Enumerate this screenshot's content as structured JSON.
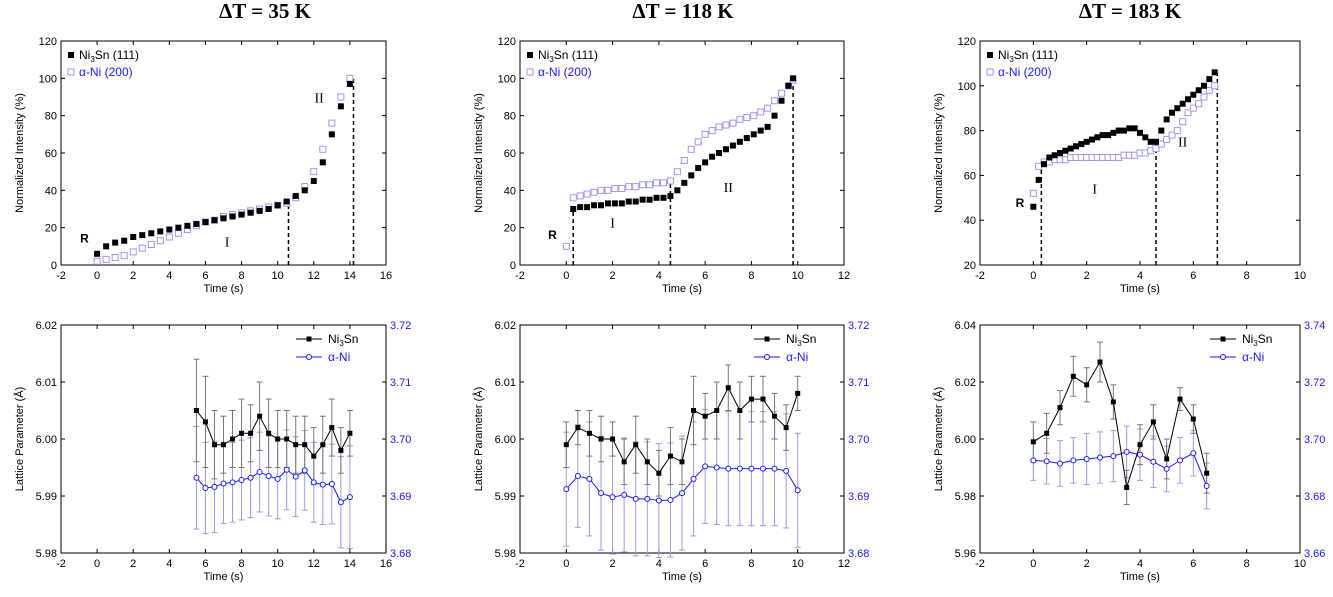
{
  "titles": [
    "ΔT = 35 K",
    "ΔT = 118 K",
    "ΔT = 183 K"
  ],
  "colors": {
    "black_series": "#000000",
    "blue_series": "#1a1aff",
    "blue_light": "#9a9af5"
  },
  "chart_data": [
    {
      "type": "scatter",
      "title": "ΔT = 35 K",
      "xlabel": "Time (s)",
      "ylabel": "Normalized Intensity (%)",
      "xlim": [
        -2,
        16
      ],
      "ylim": [
        0,
        120
      ],
      "xticks": [
        -2,
        0,
        2,
        4,
        6,
        8,
        10,
        12,
        14,
        16
      ],
      "yticks": [
        0,
        20,
        40,
        60,
        80,
        100,
        120
      ],
      "legend": [
        "Ni3Sn (111)",
        "α-Ni (200)"
      ],
      "regions": [
        "R",
        "I",
        "II"
      ],
      "region_label_pos": [
        [
          -0.7,
          12
        ],
        [
          7.2,
          10
        ],
        [
          12.3,
          87
        ]
      ],
      "dividers": [
        10.6,
        14.2
      ],
      "series": [
        {
          "name": "Ni3Sn (111)",
          "x": [
            0,
            0.5,
            1,
            1.5,
            2,
            2.5,
            3,
            3.5,
            4,
            4.5,
            5,
            5.5,
            6,
            6.5,
            7,
            7.5,
            8,
            8.5,
            9,
            9.5,
            10,
            10.5,
            11,
            11.5,
            12,
            12.5,
            13,
            13.5,
            14
          ],
          "y": [
            6,
            10,
            12,
            13,
            15,
            16,
            17,
            18,
            19,
            20,
            21,
            22,
            23,
            24,
            25,
            26,
            27,
            28,
            29,
            30,
            32,
            34,
            37,
            40,
            45,
            55,
            70,
            85,
            97
          ]
        },
        {
          "name": "α-Ni (200)",
          "x": [
            0,
            0.5,
            1,
            1.5,
            2,
            2.5,
            3,
            3.5,
            4,
            4.5,
            5,
            5.5,
            6,
            6.5,
            7,
            7.5,
            8,
            8.5,
            9,
            9.5,
            10,
            10.5,
            11,
            11.5,
            12,
            12.5,
            13,
            13.5,
            14
          ],
          "y": [
            2,
            3,
            4,
            5,
            7,
            9,
            11,
            13,
            15,
            17,
            19,
            21,
            23,
            24,
            26,
            27,
            28,
            29,
            30,
            31,
            32,
            33,
            36,
            42,
            50,
            62,
            76,
            90,
            100
          ]
        }
      ]
    },
    {
      "type": "scatter",
      "title": "ΔT = 118 K",
      "xlabel": "Time (s)",
      "ylabel": "Normalized Intensity (%)",
      "xlim": [
        -2,
        12
      ],
      "ylim": [
        0,
        120
      ],
      "xticks": [
        -2,
        0,
        2,
        4,
        6,
        8,
        10,
        12
      ],
      "yticks": [
        0,
        20,
        40,
        60,
        80,
        100,
        120
      ],
      "legend": [
        "Ni3Sn (111)",
        "α-Ni (200)"
      ],
      "regions": [
        "R",
        "I",
        "II"
      ],
      "region_label_pos": [
        [
          -0.6,
          14
        ],
        [
          2.0,
          20
        ],
        [
          7.0,
          39
        ]
      ],
      "dividers": [
        0.3,
        4.5,
        9.8
      ],
      "series": [
        {
          "name": "Ni3Sn (111)",
          "x": [
            0.3,
            0.6,
            0.9,
            1.2,
            1.5,
            1.8,
            2.1,
            2.4,
            2.7,
            3.0,
            3.3,
            3.6,
            3.9,
            4.2,
            4.5,
            4.8,
            5.1,
            5.4,
            5.7,
            6.0,
            6.3,
            6.6,
            6.9,
            7.2,
            7.5,
            7.8,
            8.1,
            8.4,
            8.7,
            9.0,
            9.3,
            9.6,
            9.8
          ],
          "y": [
            30,
            31,
            31,
            32,
            32,
            33,
            33,
            33,
            34,
            34,
            35,
            35,
            36,
            36,
            37,
            40,
            44,
            48,
            52,
            55,
            58,
            60,
            62,
            64,
            66,
            68,
            70,
            72,
            74,
            80,
            88,
            96,
            100
          ]
        },
        {
          "name": "α-Ni (200)",
          "x": [
            0.0,
            0.3,
            0.6,
            0.9,
            1.2,
            1.5,
            1.8,
            2.1,
            2.4,
            2.7,
            3.0,
            3.3,
            3.6,
            3.9,
            4.2,
            4.5,
            4.8,
            5.1,
            5.4,
            5.7,
            6.0,
            6.3,
            6.6,
            6.9,
            7.2,
            7.5,
            7.8,
            8.1,
            8.4,
            8.7,
            9.0,
            9.3,
            9.6,
            9.8
          ],
          "y": [
            10,
            36,
            37,
            38,
            39,
            40,
            40,
            41,
            41,
            42,
            42,
            43,
            43,
            44,
            44,
            45,
            50,
            56,
            62,
            66,
            70,
            72,
            74,
            75,
            76,
            78,
            79,
            80,
            82,
            84,
            88,
            92,
            96,
            99
          ]
        }
      ]
    },
    {
      "type": "scatter",
      "title": "ΔT = 183 K",
      "xlabel": "Time (s)",
      "ylabel": "Normalized Intensity (%)",
      "xlim": [
        -2,
        10
      ],
      "ylim": [
        20,
        120
      ],
      "xticks": [
        -2,
        0,
        2,
        4,
        6,
        8,
        10
      ],
      "yticks": [
        20,
        40,
        60,
        80,
        100,
        120
      ],
      "legend": [
        "Ni3Sn (111)",
        "α-Ni (200)"
      ],
      "regions": [
        "R",
        "I",
        "II"
      ],
      "region_label_pos": [
        [
          -0.5,
          46
        ],
        [
          2.3,
          52
        ],
        [
          5.6,
          73
        ]
      ],
      "dividers": [
        0.3,
        4.6,
        6.9
      ],
      "series": [
        {
          "name": "Ni3Sn (111)",
          "x": [
            0.0,
            0.2,
            0.4,
            0.6,
            0.8,
            1.0,
            1.2,
            1.4,
            1.6,
            1.8,
            2.0,
            2.2,
            2.4,
            2.6,
            2.8,
            3.0,
            3.2,
            3.4,
            3.6,
            3.8,
            4.0,
            4.2,
            4.4,
            4.6,
            4.8,
            5.0,
            5.2,
            5.4,
            5.6,
            5.8,
            6.0,
            6.2,
            6.4,
            6.6,
            6.8
          ],
          "y": [
            46,
            58,
            65,
            68,
            69,
            70,
            71,
            72,
            73,
            74,
            75,
            76,
            77,
            78,
            78,
            79,
            80,
            80,
            81,
            81,
            79,
            77,
            75,
            75,
            80,
            85,
            88,
            90,
            92,
            94,
            96,
            98,
            100,
            103,
            106
          ]
        },
        {
          "name": "α-Ni (200)",
          "x": [
            0.0,
            0.2,
            0.4,
            0.6,
            0.8,
            1.0,
            1.2,
            1.4,
            1.6,
            1.8,
            2.0,
            2.2,
            2.4,
            2.6,
            2.8,
            3.0,
            3.2,
            3.4,
            3.6,
            3.8,
            4.0,
            4.2,
            4.4,
            4.6,
            4.8,
            5.0,
            5.2,
            5.4,
            5.6,
            5.8,
            6.0,
            6.2,
            6.4,
            6.6,
            6.8
          ],
          "y": [
            52,
            64,
            66,
            66,
            67,
            67,
            67,
            68,
            68,
            68,
            68,
            68,
            68,
            68,
            68,
            68,
            68,
            69,
            69,
            69,
            70,
            70,
            71,
            72,
            74,
            76,
            78,
            80,
            84,
            88,
            90,
            92,
            95,
            98,
            100
          ]
        }
      ]
    },
    {
      "type": "line",
      "xlabel": "Time (s)",
      "ylabel": "Lattice Parameter (Å)",
      "xlim": [
        -2,
        16
      ],
      "ylim": [
        5.98,
        6.02
      ],
      "y2lim": [
        3.68,
        3.72
      ],
      "xticks": [
        -2,
        0,
        2,
        4,
        6,
        8,
        10,
        12,
        14,
        16
      ],
      "yticks": [
        "5.98",
        "5.99",
        "6.00",
        "6.01",
        "6.02"
      ],
      "y2ticks": [
        "3.68",
        "3.69",
        "3.70",
        "3.71",
        "3.72"
      ],
      "legend": [
        "Ni3Sn",
        "α-Ni"
      ],
      "series": [
        {
          "name": "Ni3Sn",
          "x": [
            5.5,
            6.0,
            6.5,
            7.0,
            7.5,
            8.0,
            8.5,
            9.0,
            9.5,
            10.0,
            10.5,
            11.0,
            11.5,
            12.0,
            12.5,
            13.0,
            13.5,
            14.0
          ],
          "y": [
            6.005,
            6.003,
            5.999,
            5.999,
            6.0,
            6.001,
            6.001,
            6.004,
            6.001,
            6.0,
            6.0,
            5.999,
            5.999,
            5.997,
            5.999,
            6.002,
            5.998,
            6.001
          ],
          "err": [
            0.009,
            0.008,
            0.006,
            0.005,
            0.005,
            0.006,
            0.005,
            0.006,
            0.006,
            0.005,
            0.005,
            0.005,
            0.005,
            0.005,
            0.005,
            0.005,
            0.004,
            0.004
          ]
        },
        {
          "name": "α-Ni",
          "x": [
            5.5,
            6.0,
            6.5,
            7.0,
            7.5,
            8.0,
            8.5,
            9.0,
            9.5,
            10.0,
            10.5,
            11.0,
            11.5,
            12.0,
            12.5,
            13.0,
            13.5,
            14.0
          ],
          "y": [
            3.6932,
            3.6914,
            3.6916,
            3.6922,
            3.6924,
            3.6928,
            3.6932,
            3.6942,
            3.6935,
            3.693,
            3.6946,
            3.6934,
            3.6945,
            3.6924,
            3.692,
            3.6921,
            3.6889,
            3.6898
          ],
          "err": [
            0.009,
            0.008,
            0.008,
            0.007,
            0.007,
            0.007,
            0.007,
            0.007,
            0.007,
            0.007,
            0.007,
            0.007,
            0.007,
            0.007,
            0.007,
            0.007,
            0.008,
            0.009
          ]
        }
      ]
    },
    {
      "type": "line",
      "xlabel": "Time (s)",
      "ylabel": "Lattice Parameter (Å)",
      "xlim": [
        -2,
        12
      ],
      "ylim": [
        5.98,
        6.02
      ],
      "y2lim": [
        3.68,
        3.72
      ],
      "xticks": [
        -2,
        0,
        2,
        4,
        6,
        8,
        10,
        12
      ],
      "yticks": [
        "5.98",
        "5.99",
        "6.00",
        "6.01",
        "6.02"
      ],
      "y2ticks": [
        "3.68",
        "3.69",
        "3.70",
        "3.71",
        "3.72"
      ],
      "legend": [
        "Ni3Sn",
        "α-Ni"
      ],
      "series": [
        {
          "name": "Ni3Sn",
          "x": [
            0.0,
            0.5,
            1.0,
            1.5,
            2.0,
            2.5,
            3.0,
            3.5,
            4.0,
            4.5,
            5.0,
            5.5,
            6.0,
            6.5,
            7.0,
            7.5,
            8.0,
            8.5,
            9.0,
            9.5,
            10.0
          ],
          "y": [
            5.999,
            6.002,
            6.001,
            6.0,
            6.0,
            5.996,
            5.999,
            5.996,
            5.994,
            5.997,
            5.996,
            6.005,
            6.004,
            6.005,
            6.009,
            6.005,
            6.007,
            6.007,
            6.004,
            6.002,
            6.008
          ],
          "err": [
            0.004,
            0.003,
            0.004,
            0.004,
            0.003,
            0.004,
            0.005,
            0.004,
            0.004,
            0.005,
            0.004,
            0.006,
            0.004,
            0.005,
            0.004,
            0.005,
            0.004,
            0.004,
            0.004,
            0.004,
            0.003
          ]
        },
        {
          "name": "α-Ni",
          "x": [
            0.0,
            0.5,
            1.0,
            1.5,
            2.0,
            2.5,
            3.0,
            3.5,
            4.0,
            4.5,
            5.0,
            5.5,
            6.0,
            6.5,
            7.0,
            7.5,
            8.0,
            8.5,
            9.0,
            9.5,
            10.0
          ],
          "y": [
            3.6912,
            3.6935,
            3.693,
            3.6905,
            3.6898,
            3.6902,
            3.6895,
            3.6895,
            3.6892,
            3.6893,
            3.6905,
            3.693,
            3.6952,
            3.695,
            3.6948,
            3.6948,
            3.6948,
            3.6948,
            3.6948,
            3.6944,
            3.691
          ],
          "err": [
            0.01,
            0.009,
            0.01,
            0.01,
            0.01,
            0.01,
            0.01,
            0.01,
            0.01,
            0.01,
            0.01,
            0.01,
            0.01,
            0.01,
            0.01,
            0.01,
            0.01,
            0.01,
            0.01,
            0.01,
            0.01
          ]
        }
      ]
    },
    {
      "type": "line",
      "xlabel": "Time (s)",
      "ylabel": "Lattice Parameter (Å)",
      "xlim": [
        -2,
        10
      ],
      "ylim": [
        5.96,
        6.04
      ],
      "y2lim": [
        3.66,
        3.74
      ],
      "xticks": [
        -2,
        0,
        2,
        4,
        6,
        8,
        10
      ],
      "yticks": [
        "5.96",
        "5.98",
        "6.00",
        "6.02",
        "6.04"
      ],
      "y2ticks": [
        "3.66",
        "3.68",
        "3.70",
        "3.72",
        "3.74"
      ],
      "legend": [
        "Ni3Sn",
        "α-Ni"
      ],
      "series": [
        {
          "name": "Ni3Sn",
          "x": [
            0.0,
            0.5,
            1.0,
            1.5,
            2.0,
            2.5,
            3.0,
            3.5,
            4.0,
            4.5,
            5.0,
            5.5,
            6.0,
            6.5
          ],
          "y": [
            5.999,
            6.002,
            6.011,
            6.022,
            6.019,
            6.027,
            6.013,
            5.983,
            5.998,
            6.006,
            5.993,
            6.014,
            6.007,
            5.988
          ],
          "err": [
            0.007,
            0.007,
            0.006,
            0.007,
            0.006,
            0.007,
            0.006,
            0.006,
            0.007,
            0.006,
            0.007,
            0.004,
            0.005,
            0.007
          ]
        },
        {
          "name": "α-Ni",
          "x": [
            0.0,
            0.5,
            1.0,
            1.5,
            2.0,
            2.5,
            3.0,
            3.5,
            4.0,
            4.5,
            5.0,
            5.5,
            6.0,
            6.5
          ],
          "y": [
            3.6925,
            3.6922,
            3.6914,
            3.6925,
            3.693,
            3.6935,
            3.694,
            3.6955,
            3.6945,
            3.692,
            3.6895,
            3.6925,
            3.695,
            3.6835
          ],
          "err": [
            0.007,
            0.008,
            0.008,
            0.008,
            0.009,
            0.009,
            0.009,
            0.009,
            0.009,
            0.009,
            0.008,
            0.008,
            0.008,
            0.008
          ]
        }
      ]
    }
  ]
}
